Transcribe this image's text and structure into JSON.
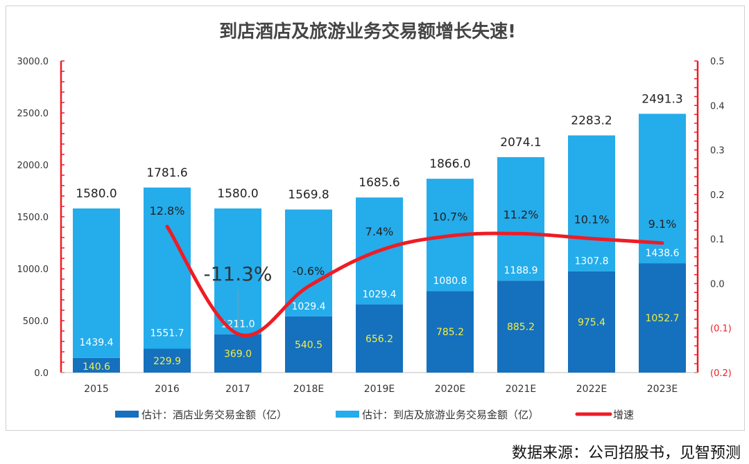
{
  "source_note": "数据来源：公司招股书，见智预测",
  "chart_data": {
    "type": "bar",
    "title": "到店酒店及旅游业务交易额增长失速!",
    "categories": [
      "2015",
      "2016",
      "2017",
      "2018E",
      "2019E",
      "2020E",
      "2021E",
      "2022E",
      "2023E"
    ],
    "series": [
      {
        "name": "估计：酒店业务交易金额（亿）",
        "type": "stacked-bar",
        "color": "#1570BE",
        "values": [
          140.6,
          229.9,
          369.0,
          540.5,
          656.2,
          785.2,
          885.2,
          975.4,
          1052.7
        ],
        "label_values": [
          "140.6",
          "229.9",
          "369.0",
          "540.5",
          "656.2",
          "785.2",
          "885.2",
          "975.4",
          "1052.7"
        ],
        "label_color": "#F5F03C"
      },
      {
        "name": "估计：到店及旅游业务交易金额（亿）",
        "type": "stacked-bar",
        "color": "#25ACEB",
        "values": [
          1439.4,
          1551.7,
          1211.0,
          1029.4,
          1029.4,
          1080.8,
          1188.9,
          1307.8,
          1438.6
        ],
        "label_values": [
          "1439.4",
          "1551.7",
          "1211.0",
          "1029.4",
          "1029.4",
          "1080.8",
          "1188.9",
          "1307.8",
          "1438.6"
        ],
        "label_color": "#ffffff"
      },
      {
        "name": "增速",
        "type": "line",
        "axis": "right",
        "color": "#EE1C25",
        "values": [
          null,
          0.128,
          -0.113,
          -0.006,
          0.074,
          0.107,
          0.112,
          0.101,
          0.091
        ],
        "label_values": [
          "",
          "12.8%",
          "-11.3%",
          "-0.6%",
          "7.4%",
          "10.7%",
          "11.2%",
          "10.1%",
          "9.1%"
        ]
      }
    ],
    "totals": [
      "1580.0",
      "1781.6",
      "1580.0",
      "1569.8",
      "1685.6",
      "1866.0",
      "2074.1",
      "2283.2",
      "2491.3"
    ],
    "y_left": {
      "range": [
        0,
        3000
      ],
      "ticks": [
        "0.0",
        "500.0",
        "1000.0",
        "1500.0",
        "2000.0",
        "2500.0",
        "3000.0"
      ]
    },
    "y_right": {
      "range": [
        -0.2,
        0.5
      ],
      "ticks": [
        "(0.2)",
        "(0.1)",
        "0.0",
        "0.1",
        "0.2",
        "0.3",
        "0.4",
        "0.5"
      ],
      "color": "#EE1C25"
    },
    "grid": false,
    "legend": "bottom"
  }
}
